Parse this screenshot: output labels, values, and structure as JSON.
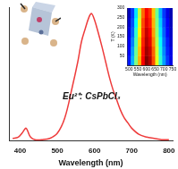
{
  "chart_data": [
    {
      "type": "line",
      "annotations": [
        "Eu²⁺: CsPbCl₃"
      ],
      "x": [
        380,
        395,
        405,
        412,
        416,
        420,
        428,
        440,
        460,
        480,
        500,
        520,
        540,
        555,
        565,
        575,
        585,
        592,
        600,
        610,
        620,
        630,
        640,
        650,
        660,
        670,
        680,
        690,
        700,
        720,
        740,
        760,
        780,
        800
      ],
      "values": [
        0.02,
        0.03,
        0.06,
        0.09,
        0.1,
        0.08,
        0.03,
        0.01,
        0.01,
        0.02,
        0.06,
        0.18,
        0.42,
        0.62,
        0.78,
        0.88,
        0.97,
        1.0,
        0.95,
        0.85,
        0.74,
        0.62,
        0.5,
        0.4,
        0.32,
        0.24,
        0.18,
        0.14,
        0.1,
        0.05,
        0.03,
        0.02,
        0.01,
        0.01
      ],
      "color": "#ee3b3b",
      "xlabel": "Wavelength (nm)",
      "xlim": [
        370,
        810
      ],
      "xticks": [
        400,
        500,
        600,
        700,
        800
      ],
      "ylim": [
        0,
        1.05
      ],
      "tick_labels": "x",
      "grid": false
    },
    {
      "type": "heatmap",
      "xlabel": "Wavelength (nm)",
      "ylabel": "T (K)",
      "x": [
        500,
        520,
        540,
        560,
        580,
        600,
        620,
        640,
        660,
        680,
        700,
        720,
        740
      ],
      "y": [
        25,
        75,
        125,
        175,
        225,
        275
      ],
      "cells": [
        [
          0.15,
          0.3,
          0.5,
          0.7,
          0.88,
          1.0,
          0.95,
          0.8,
          0.6,
          0.42,
          0.28,
          0.18,
          0.1
        ],
        [
          0.13,
          0.28,
          0.48,
          0.68,
          0.86,
          0.97,
          0.93,
          0.78,
          0.58,
          0.4,
          0.26,
          0.16,
          0.1
        ],
        [
          0.12,
          0.25,
          0.45,
          0.66,
          0.84,
          0.95,
          0.9,
          0.75,
          0.55,
          0.38,
          0.24,
          0.15,
          0.08
        ],
        [
          0.1,
          0.22,
          0.42,
          0.63,
          0.82,
          0.93,
          0.88,
          0.72,
          0.52,
          0.35,
          0.22,
          0.13,
          0.07
        ],
        [
          0.08,
          0.2,
          0.38,
          0.6,
          0.8,
          0.9,
          0.85,
          0.7,
          0.5,
          0.33,
          0.2,
          0.12,
          0.06
        ],
        [
          0.06,
          0.18,
          0.35,
          0.57,
          0.77,
          0.88,
          0.83,
          0.68,
          0.48,
          0.3,
          0.18,
          0.1,
          0.05
        ]
      ],
      "zlim": [
        0,
        1
      ],
      "xlim": [
        490,
        750
      ],
      "xticks": [
        500,
        550,
        600,
        650,
        700,
        750
      ],
      "ylim": [
        0,
        300
      ],
      "yticks": [
        50,
        100,
        150,
        200,
        250,
        300
      ]
    }
  ]
}
